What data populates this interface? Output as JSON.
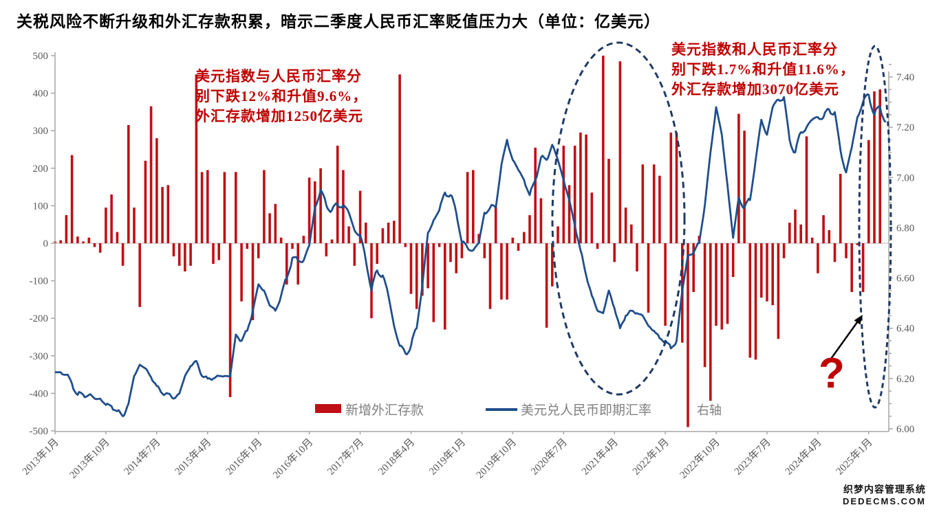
{
  "title": "关税风险不断升级和外汇存款积累，暗示二季度人民币汇率贬值压力大（单位：亿美元）",
  "annotations": {
    "period2015": {
      "lines": [
        "美元指数与人民币汇率分",
        "别下跌12%和升值9.6%，",
        "外汇存款增加1250亿美元"
      ]
    },
    "period2025": {
      "lines": [
        "美元指数和人民币汇率分",
        "别下跌1.7%和升值11.6%，",
        "外汇存款增加3070亿美元"
      ]
    },
    "question_mark": "?"
  },
  "legend": {
    "bars_label": "新增外汇存款",
    "line_label": "美元兑人民币即期汇率",
    "right_axis_note": "右轴"
  },
  "watermark": {
    "line1": "织梦内容管理系统",
    "line2": "DEDECMS.COM"
  },
  "colors": {
    "bar": "#bf1015",
    "line": "#1f4e8c",
    "ellipse": "#1f3a64",
    "annotation": "#c00000",
    "axis": "#a6a6a6",
    "tick_label": "#595959",
    "legend_text": "#808080",
    "zero_line": "#d9d9d9",
    "question": "#c00000",
    "arrow": "#000000"
  },
  "chart_data": {
    "type": "combo",
    "title": "关税风险不断升级和外汇存款积累，暗示二季度人民币汇率贬值压力大（单位：亿美元）",
    "x_axis": {
      "start_month": "2013-01",
      "tick_interval_months": 9,
      "tick_labels": [
        "2013年1月",
        "2013年10月",
        "2014年7月",
        "2015年4月",
        "2016年1月",
        "2016年10月",
        "2017年7月",
        "2018年4月",
        "2019年1月",
        "2019年10月",
        "2020年7月",
        "2021年4月",
        "2022年1月",
        "2022年10月",
        "2023年7月",
        "2024年4月",
        "2025年1月"
      ]
    },
    "left_axis": {
      "min": -500,
      "max": 500,
      "tick_step": 100,
      "tick_labels": [
        "500",
        "400",
        "300",
        "200",
        "100",
        "0",
        "-100",
        "-200",
        "-300",
        "-400",
        "-500"
      ]
    },
    "right_axis": {
      "min": 6.0,
      "max": 7.4,
      "tick_step": 0.2,
      "minor_tick_step": 0.05,
      "tick_labels": [
        "7.40",
        "7.20",
        "7.00",
        "6.80",
        "6.60",
        "6.40",
        "6.20",
        "6.00"
      ]
    },
    "series": [
      {
        "name": "新增外汇存款",
        "type": "bar",
        "axis": "left",
        "start_month": "2013-01",
        "frequency": "monthly",
        "values": [
          5,
          8,
          75,
          235,
          18,
          5,
          15,
          -10,
          -25,
          95,
          130,
          30,
          -60,
          315,
          95,
          -170,
          220,
          365,
          280,
          150,
          155,
          -35,
          -60,
          -75,
          -60,
          450,
          190,
          195,
          -55,
          -45,
          190,
          -410,
          190,
          -155,
          -15,
          -205,
          -40,
          195,
          80,
          105,
          15,
          -110,
          -15,
          -110,
          20,
          175,
          165,
          200,
          -35,
          10,
          260,
          195,
          45,
          -60,
          140,
          55,
          -200,
          -55,
          40,
          55,
          60,
          450,
          -10,
          -135,
          -175,
          -140,
          -120,
          -210,
          -10,
          -230,
          -50,
          -80,
          -40,
          190,
          195,
          25,
          -40,
          -175,
          100,
          -150,
          -150,
          15,
          -20,
          30,
          75,
          255,
          120,
          -225,
          -115,
          45,
          260,
          155,
          260,
          295,
          290,
          135,
          -15,
          500,
          225,
          -50,
          485,
          95,
          50,
          -75,
          210,
          -185,
          210,
          180,
          -220,
          295,
          295,
          -265,
          -490,
          -130,
          20,
          -330,
          -420,
          -220,
          -230,
          -215,
          -90,
          345,
          300,
          -305,
          -310,
          -145,
          -155,
          -165,
          -255,
          -40,
          55,
          90,
          50,
          285,
          15,
          -80,
          75,
          35,
          -50,
          185,
          -40,
          -130,
          -5,
          -130,
          275,
          405,
          410
        ]
      },
      {
        "name": "美元兑人民币即期汇率",
        "type": "line",
        "axis": "right",
        "start_month": "2013-01",
        "frequency": "monthly",
        "values": [
          6.225,
          6.225,
          6.215,
          6.18,
          6.135,
          6.135,
          6.135,
          6.12,
          6.12,
          6.095,
          6.09,
          6.07,
          6.05,
          6.1,
          6.21,
          6.255,
          6.24,
          6.205,
          6.17,
          6.14,
          6.14,
          6.12,
          6.14,
          6.21,
          6.25,
          6.27,
          6.21,
          6.2,
          6.2,
          6.21,
          6.21,
          6.21,
          6.375,
          6.35,
          6.39,
          6.47,
          6.575,
          6.55,
          6.49,
          6.47,
          6.53,
          6.6,
          6.68,
          6.67,
          6.67,
          6.73,
          6.88,
          6.95,
          6.89,
          6.87,
          6.89,
          6.89,
          6.86,
          6.79,
          6.77,
          6.67,
          6.55,
          6.63,
          6.61,
          6.53,
          6.41,
          6.33,
          6.3,
          6.33,
          6.4,
          6.57,
          6.78,
          6.83,
          6.87,
          6.94,
          6.93,
          6.86,
          6.74,
          6.72,
          6.71,
          6.74,
          6.86,
          6.88,
          6.88,
          7.05,
          7.15,
          7.07,
          7.03,
          6.99,
          6.93,
          6.99,
          7.08,
          7.07,
          7.13,
          7.07,
          6.99,
          6.91,
          6.81,
          6.71,
          6.61,
          6.53,
          6.47,
          6.46,
          6.55,
          6.48,
          6.4,
          6.45,
          6.47,
          6.46,
          6.45,
          6.41,
          6.39,
          6.36,
          6.35,
          6.32,
          6.35,
          6.55,
          6.69,
          6.7,
          6.74,
          6.89,
          7.1,
          7.28,
          7.17,
          6.97,
          6.76,
          6.92,
          6.88,
          6.91,
          7.07,
          7.23,
          7.17,
          7.28,
          7.31,
          7.32,
          7.15,
          7.1,
          7.18,
          7.2,
          7.23,
          7.24,
          7.24,
          7.27,
          7.26,
          7.11,
          7.02,
          7.12,
          7.24,
          7.3,
          7.33,
          7.25,
          7.28,
          7.22
        ]
      }
    ],
    "legend_position": "bottom",
    "grid": "zero-line-only"
  }
}
